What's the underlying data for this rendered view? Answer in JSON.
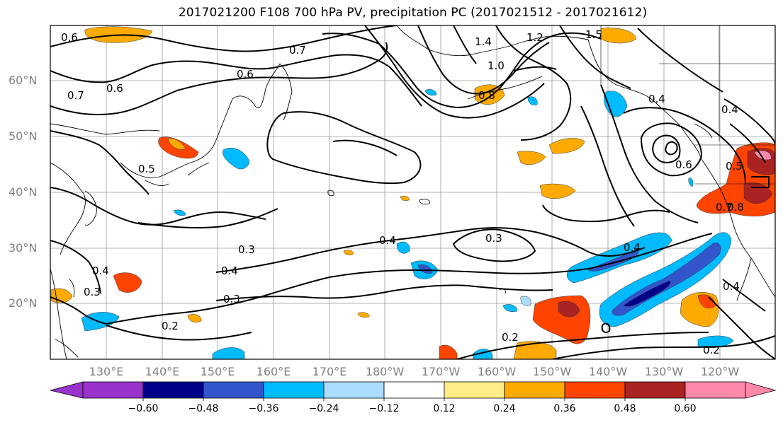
{
  "title": "2017021200 F108 700 hPa PV, precipitation PC (2017021512 - 2017021612)",
  "map": {
    "lat_labels": [
      "60°N",
      "50°N",
      "40°N",
      "30°N",
      "20°N"
    ],
    "lon_labels": [
      "130°E",
      "140°E",
      "150°E",
      "160°E",
      "170°E",
      "180°W",
      "170°W",
      "160°W",
      "150°W",
      "140°W",
      "130°W",
      "120°W"
    ],
    "lon_range": [
      120,
      250
    ],
    "lat_range": [
      10,
      70
    ],
    "contour_labels": [
      "0.6",
      "0.7",
      "0.6",
      "0.7",
      "1.4",
      "1.2",
      "1.5",
      "0.6",
      "1.0",
      "0.8",
      "0.4",
      "0.4",
      "0.5",
      "0.6",
      "0.7",
      "0.5",
      "0.8",
      "0.4",
      "0.3",
      "0.3",
      "0.4",
      "0.4",
      "0.3",
      "0.2",
      "0.4",
      "0.3",
      "0.2",
      "0.2",
      "0.4"
    ]
  },
  "colorbar": {
    "colors": [
      "#9933cc",
      "#000088",
      "#3355cc",
      "#00bbff",
      "#aaddff",
      "#ffffff",
      "#ffee88",
      "#ffaa00",
      "#ff4400",
      "#aa2222",
      "#ff88aa"
    ],
    "tick_labels": [
      "−0.60",
      "−0.48",
      "−0.36",
      "−0.24",
      "−0.12",
      "0.12",
      "0.24",
      "0.36",
      "0.48",
      "0.60"
    ]
  }
}
